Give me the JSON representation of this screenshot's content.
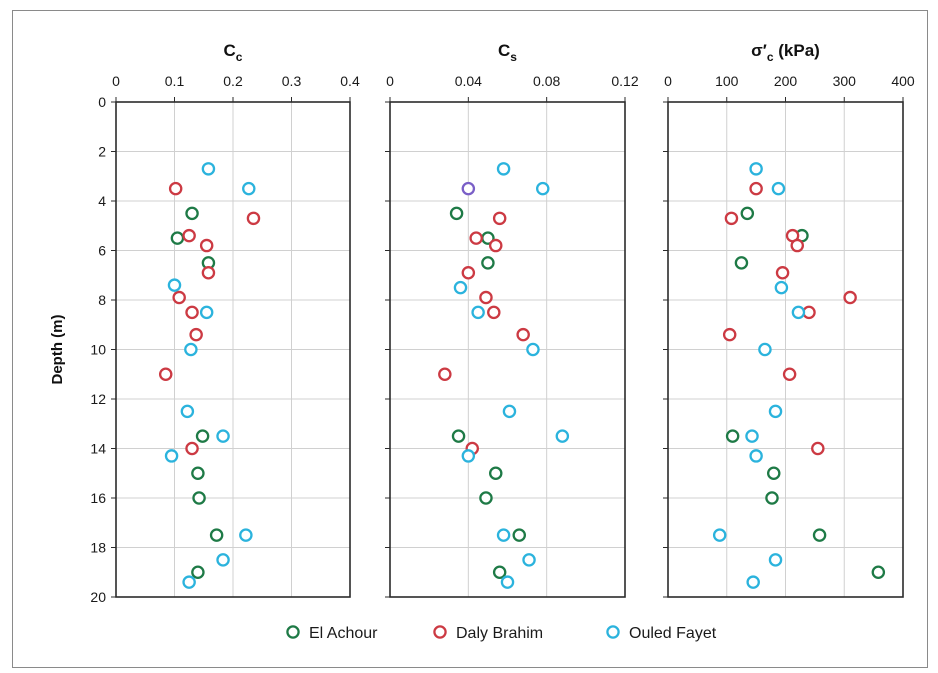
{
  "y_axis": {
    "label": "Depth (m)",
    "ticks": [
      0,
      2,
      4,
      6,
      8,
      10,
      12,
      14,
      16,
      18,
      20
    ]
  },
  "legend": [
    {
      "name": "El Achour",
      "color": "#1e7a46"
    },
    {
      "name": "Daly Brahim",
      "color": "#cc3a43"
    },
    {
      "name": "Ouled Fayet",
      "color": "#2bb3dd"
    }
  ],
  "chart_data": [
    {
      "type": "scatter",
      "title": "Cc",
      "title_main": "C",
      "title_sub": "c",
      "xlim": [
        0,
        0.4
      ],
      "xticks": [
        "0",
        "0.1",
        "0.2",
        "0.3",
        "0.4"
      ],
      "ylim": [
        20,
        0
      ],
      "grid": true,
      "series": [
        {
          "name": "El Achour",
          "points": [
            [
              0.13,
              4.5
            ],
            [
              0.105,
              5.5
            ],
            [
              0.158,
              6.5
            ],
            [
              0.148,
              13.5
            ],
            [
              0.14,
              15
            ],
            [
              0.142,
              16
            ],
            [
              0.172,
              17.5
            ],
            [
              0.14,
              19
            ]
          ]
        },
        {
          "name": "Daly Brahim",
          "points": [
            [
              0.102,
              3.5
            ],
            [
              0.235,
              4.7
            ],
            [
              0.125,
              5.4
            ],
            [
              0.155,
              5.8
            ],
            [
              0.158,
              6.9
            ],
            [
              0.108,
              7.9
            ],
            [
              0.13,
              8.5
            ],
            [
              0.137,
              9.4
            ],
            [
              0.085,
              11
            ],
            [
              0.13,
              14
            ]
          ]
        },
        {
          "name": "Ouled Fayet",
          "points": [
            [
              0.158,
              2.7
            ],
            [
              0.227,
              3.5
            ],
            [
              0.1,
              7.4
            ],
            [
              0.155,
              8.5
            ],
            [
              0.128,
              10
            ],
            [
              0.122,
              12.5
            ],
            [
              0.183,
              13.5
            ],
            [
              0.095,
              14.3
            ],
            [
              0.222,
              17.5
            ],
            [
              0.183,
              18.5
            ],
            [
              0.125,
              19.4
            ]
          ]
        }
      ]
    },
    {
      "type": "scatter",
      "title": "Cs",
      "title_main": "C",
      "title_sub": "s",
      "xlim": [
        0,
        0.12
      ],
      "xticks": [
        "0",
        "0.04",
        "0.08",
        "0.12"
      ],
      "ylim": [
        20,
        0
      ],
      "grid": true,
      "series": [
        {
          "name": "El Achour",
          "points": [
            [
              0.034,
              4.5
            ],
            [
              0.05,
              5.5
            ],
            [
              0.05,
              6.5
            ],
            [
              0.035,
              13.5
            ],
            [
              0.054,
              15
            ],
            [
              0.049,
              16
            ],
            [
              0.066,
              17.5
            ],
            [
              0.056,
              19
            ]
          ]
        },
        {
          "name": "Daly Brahim",
          "points": [
            [
              0.056,
              4.7
            ],
            [
              0.044,
              5.5
            ],
            [
              0.054,
              5.8
            ],
            [
              0.04,
              6.9
            ],
            [
              0.049,
              7.9
            ],
            [
              0.053,
              8.5
            ],
            [
              0.068,
              9.4
            ],
            [
              0.028,
              11
            ],
            [
              0.042,
              14
            ]
          ]
        },
        {
          "name": "Ouled Fayet",
          "points": [
            [
              0.058,
              2.7
            ],
            [
              0.078,
              3.5
            ],
            [
              0.036,
              7.5
            ],
            [
              0.045,
              8.5
            ],
            [
              0.073,
              10
            ],
            [
              0.061,
              12.5
            ],
            [
              0.088,
              13.5
            ],
            [
              0.04,
              14.3
            ],
            [
              0.058,
              17.5
            ],
            [
              0.071,
              18.5
            ],
            [
              0.06,
              19.4
            ]
          ]
        },
        {
          "name": "",
          "color": "#7a5fc7",
          "points": [
            [
              0.04,
              3.5
            ]
          ]
        }
      ]
    },
    {
      "type": "scatter",
      "title": "σ'c (kPa)",
      "title_main": "σ′",
      "title_sub": "c",
      "title_suffix": " (kPa)",
      "xlim": [
        0,
        400
      ],
      "xticks": [
        "0",
        "100",
        "200",
        "300",
        "400"
      ],
      "ylim": [
        20,
        0
      ],
      "grid": true,
      "series": [
        {
          "name": "El Achour",
          "points": [
            [
              135,
              4.5
            ],
            [
              228,
              5.4
            ],
            [
              125,
              6.5
            ],
            [
              110,
              13.5
            ],
            [
              180,
              15
            ],
            [
              177,
              16
            ],
            [
              258,
              17.5
            ],
            [
              358,
              19
            ]
          ]
        },
        {
          "name": "Daly Brahim",
          "points": [
            [
              150,
              3.5
            ],
            [
              108,
              4.7
            ],
            [
              212,
              5.4
            ],
            [
              220,
              5.8
            ],
            [
              195,
              6.9
            ],
            [
              310,
              7.9
            ],
            [
              240,
              8.5
            ],
            [
              105,
              9.4
            ],
            [
              207,
              11
            ],
            [
              255,
              14
            ]
          ]
        },
        {
          "name": "Ouled Fayet",
          "points": [
            [
              150,
              2.7
            ],
            [
              188,
              3.5
            ],
            [
              193,
              7.5
            ],
            [
              222,
              8.5
            ],
            [
              165,
              10
            ],
            [
              183,
              12.5
            ],
            [
              143,
              13.5
            ],
            [
              150,
              14.3
            ],
            [
              88,
              17.5
            ],
            [
              183,
              18.5
            ],
            [
              145,
              19.4
            ]
          ]
        }
      ]
    }
  ]
}
